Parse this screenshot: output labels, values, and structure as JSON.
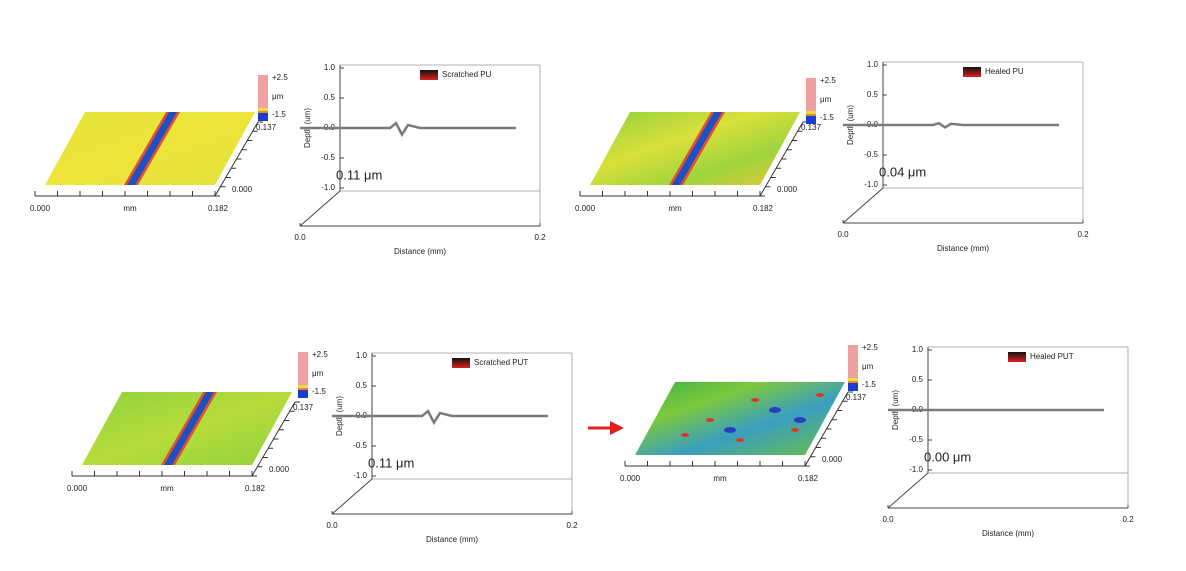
{
  "chart_data": [
    {
      "type": "line",
      "legend": "upper right",
      "annotation": "0.11 μm",
      "xlabel": "Distance (mm)",
      "ylabel": "Depth (um)",
      "x": [
        0,
        0.04,
        0.075,
        0.08,
        0.085,
        0.09,
        0.1,
        0.14,
        0.18
      ],
      "series": [
        {
          "name": "Scratched PU",
          "color": "#7a7a7a",
          "values": [
            0,
            0,
            0,
            0.08,
            -0.11,
            0.05,
            0,
            0,
            0
          ]
        }
      ],
      "xlim": [
        0,
        0.2
      ],
      "xticks": [
        {
          "value": 0,
          "label": "0.0"
        },
        {
          "value": 0.2,
          "label": "0.2"
        }
      ],
      "ylim": [
        -1,
        1
      ],
      "yticks": [
        {
          "value": 1,
          "label": "1.0"
        },
        {
          "value": 0.5,
          "label": "0.5"
        },
        {
          "value": 0,
          "label": "0.0"
        },
        {
          "value": -0.5,
          "label": "-0.5"
        },
        {
          "value": -1,
          "label": "-1.0"
        }
      ]
    },
    {
      "type": "line",
      "legend": "upper right",
      "annotation": "0.04 μm",
      "xlabel": "Distance (mm)",
      "ylabel": "Depth (um)",
      "x": [
        0,
        0.04,
        0.075,
        0.08,
        0.085,
        0.09,
        0.1,
        0.14,
        0.18
      ],
      "series": [
        {
          "name": "Healed PU",
          "color": "#7a7a7a",
          "values": [
            0,
            0,
            0,
            0.03,
            -0.04,
            0.02,
            0,
            0,
            0
          ]
        }
      ],
      "xlim": [
        0,
        0.2
      ],
      "xticks": [
        {
          "value": 0,
          "label": "0.0"
        },
        {
          "value": 0.2,
          "label": "0.2"
        }
      ],
      "ylim": [
        -1,
        1
      ],
      "yticks": [
        {
          "value": 1,
          "label": "1.0"
        },
        {
          "value": 0.5,
          "label": "0.5"
        },
        {
          "value": 0,
          "label": "0.0"
        },
        {
          "value": -0.5,
          "label": "-0.5"
        },
        {
          "value": -1,
          "label": "-1.0"
        }
      ]
    },
    {
      "type": "line",
      "legend": "upper right",
      "annotation": "0.11 μm",
      "xlabel": "Distance (mm)",
      "ylabel": "Depth (um)",
      "x": [
        0,
        0.04,
        0.075,
        0.08,
        0.085,
        0.09,
        0.1,
        0.14,
        0.18
      ],
      "series": [
        {
          "name": "Scratched PUT",
          "color": "#7a7a7a",
          "values": [
            0,
            0,
            0,
            0.08,
            -0.11,
            0.05,
            0,
            0,
            0
          ]
        }
      ],
      "xlim": [
        0,
        0.2
      ],
      "xticks": [
        {
          "value": 0,
          "label": "0.0"
        },
        {
          "value": 0.2,
          "label": "0.2"
        }
      ],
      "ylim": [
        -1,
        1
      ],
      "yticks": [
        {
          "value": 1,
          "label": "1.0"
        },
        {
          "value": 0.5,
          "label": "0.5"
        },
        {
          "value": 0,
          "label": "0.0"
        },
        {
          "value": -0.5,
          "label": "-0.5"
        },
        {
          "value": -1,
          "label": "-1.0"
        }
      ]
    },
    {
      "type": "line",
      "legend": "upper right",
      "annotation": "0.00 μm",
      "xlabel": "Distance (mm)",
      "ylabel": "Depth (um)",
      "x": [
        0,
        0.04,
        0.08,
        0.12,
        0.16,
        0.18
      ],
      "series": [
        {
          "name": "Healed PUT",
          "color": "#7a7a7a",
          "values": [
            0,
            0,
            0,
            0,
            0,
            0
          ]
        }
      ],
      "xlim": [
        0,
        0.2
      ],
      "xticks": [
        {
          "value": 0,
          "label": "0.0"
        },
        {
          "value": 0.2,
          "label": "0.2"
        }
      ],
      "ylim": [
        -1,
        1
      ],
      "yticks": [
        {
          "value": 1,
          "label": "1.0"
        },
        {
          "value": 0.5,
          "label": "0.5"
        },
        {
          "value": 0,
          "label": "0.0"
        },
        {
          "value": -0.5,
          "label": "-0.5"
        },
        {
          "value": -1,
          "label": "-1.0"
        }
      ]
    }
  ],
  "panels": [
    {
      "x_start": "0.000",
      "x_unit": "mm",
      "x_end": "0.182",
      "y_start": "0.000",
      "y_end": "0.137",
      "scale_max": "+2.5",
      "scale_unit": "μm",
      "scale_min": "-1.5"
    },
    {
      "x_start": "0.000",
      "x_unit": "mm",
      "x_end": "0.182",
      "y_start": "0.000",
      "y_end": "0.137",
      "scale_max": "+2.5",
      "scale_unit": "μm",
      "scale_min": "-1.5"
    },
    {
      "x_start": "0.000",
      "x_unit": "mm",
      "x_end": "0.182",
      "y_start": "0.000",
      "y_end": "0.137",
      "scale_max": "+2.5",
      "scale_unit": "μm",
      "scale_min": "-1.5"
    },
    {
      "x_start": "0.000",
      "x_unit": "mm",
      "x_end": "0.182",
      "y_start": "0.000",
      "y_end": "0.137",
      "scale_max": "+2.5",
      "scale_unit": "μm",
      "scale_min": "-1.5"
    }
  ]
}
